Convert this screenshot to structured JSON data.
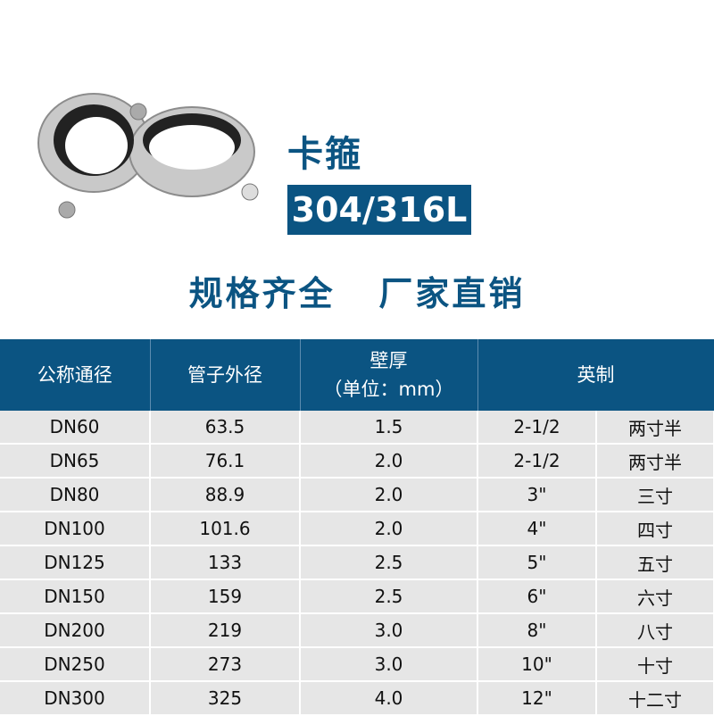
{
  "product": {
    "name": "卡箍",
    "material": "304/316L",
    "slogan": "规格齐全   厂家直销"
  },
  "table": {
    "headers": [
      "公称通径",
      "管子外径",
      "壁厚",
      "（单位：mm）",
      "英制"
    ],
    "rows": [
      [
        "DN60",
        "63.5",
        "1.5",
        "2-1/2",
        "两寸半"
      ],
      [
        "DN65",
        "76.1",
        "2.0",
        "2-1/2",
        "两寸半"
      ],
      [
        "DN80",
        "88.9",
        "2.0",
        "3\"",
        "三寸"
      ],
      [
        "DN100",
        "101.6",
        "2.0",
        "4\"",
        "四寸"
      ],
      [
        "DN125",
        "133",
        "2.5",
        "5\"",
        "五寸"
      ],
      [
        "DN150",
        "159",
        "2.5",
        "6\"",
        "六寸"
      ],
      [
        "DN200",
        "219",
        "3.0",
        "8\"",
        "八寸"
      ],
      [
        "DN250",
        "273",
        "3.0",
        "10\"",
        "十寸"
      ],
      [
        "DN300",
        "325",
        "4.0",
        "12\"",
        "十二寸"
      ]
    ]
  },
  "colors": {
    "brand": "#0b5482",
    "row_bg": "#e6e6e6"
  }
}
